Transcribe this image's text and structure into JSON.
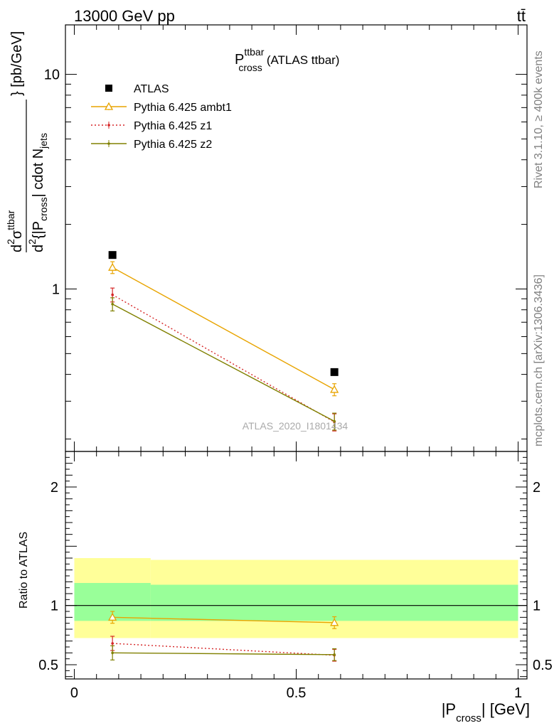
{
  "header": {
    "left": "13000 GeV pp",
    "right": "tt̄"
  },
  "title": {
    "main": "P",
    "sup": "ttbar",
    "sub": "cross",
    "tail": "(ATLAS ttbar)"
  },
  "side_labels": {
    "rivet": "Rivet 3.1.10, ≥ 400k events",
    "mcplots": "mcplots.cern.ch [arXiv:1306.3436]"
  },
  "watermark": "ATLAS_2020_I1801434",
  "ylabel_main": {
    "d2": "d",
    "sup2": "2",
    "sigma": "σ",
    "sup_ttbar": "ttbar",
    "open": "d",
    "sup2b": "2",
    "brace": "{|P",
    "sub_cross": "cross",
    "close": "| cdot N",
    "sub_jets": "jets",
    "units": "} [pb/GeV]"
  },
  "ylabel_ratio": "Ratio to ATLAS",
  "xlabel": {
    "pre": "|P",
    "sub": "cross",
    "post": "| [GeV]"
  },
  "chart_data": {
    "type": "scatter",
    "x": [
      0.086,
      0.586
    ],
    "xlim": [
      -0.02,
      1.02
    ],
    "main_ylim": [
      0.175,
      17
    ],
    "main_yscale": "log",
    "ratio_ylim": [
      0.38,
      2.3
    ],
    "x_ticks": [
      {
        "v": 0,
        "label": "0"
      },
      {
        "v": 0.5,
        "label": "0.5"
      },
      {
        "v": 1,
        "label": "1"
      }
    ],
    "main_y_ticks": [
      {
        "v": 1,
        "label": "1"
      },
      {
        "v": 10,
        "label": "10"
      }
    ],
    "ratio_y_ticks": [
      {
        "v": 0.5,
        "label": "0.5"
      },
      {
        "v": 1,
        "label": "1"
      },
      {
        "v": 2,
        "label": "2"
      }
    ],
    "data": {
      "name": "ATLAS",
      "color": "#000000",
      "values": [
        1.44,
        0.41
      ]
    },
    "mc": [
      {
        "name": "Pythia 6.425 ambt1",
        "color": "#e8a400",
        "style": "solid",
        "marker": "triangle",
        "values": [
          1.26,
          0.34
        ],
        "errors": [
          0.08,
          0.022
        ],
        "ratio": [
          0.9,
          0.855
        ],
        "ratio_err": [
          0.05,
          0.05
        ]
      },
      {
        "name": "Pythia 6.425 z1",
        "color": "#d62728",
        "style": "dotted",
        "marker": "dot",
        "values": [
          0.94,
          0.24
        ],
        "errors": [
          0.07,
          0.022
        ],
        "ratio": [
          0.68,
          0.58
        ],
        "ratio_err": [
          0.06,
          0.05
        ]
      },
      {
        "name": "Pythia 6.425 z2",
        "color": "#808000",
        "style": "solid",
        "marker": "dot",
        "values": [
          0.85,
          0.242
        ],
        "errors": [
          0.06,
          0.022
        ],
        "ratio": [
          0.6,
          0.585
        ],
        "ratio_err": [
          0.06,
          0.05
        ]
      }
    ],
    "bands": [
      {
        "x0": 0.0,
        "x1": 0.172,
        "yellow": [
          0.725,
          1.4
        ],
        "green": [
          0.87,
          1.19
        ]
      },
      {
        "x0": 0.172,
        "x1": 1.0,
        "yellow": [
          0.725,
          1.385
        ],
        "green": [
          0.87,
          1.175
        ]
      }
    ],
    "band_colors": {
      "yellow": "#ffff99",
      "green": "#99ff99"
    }
  }
}
